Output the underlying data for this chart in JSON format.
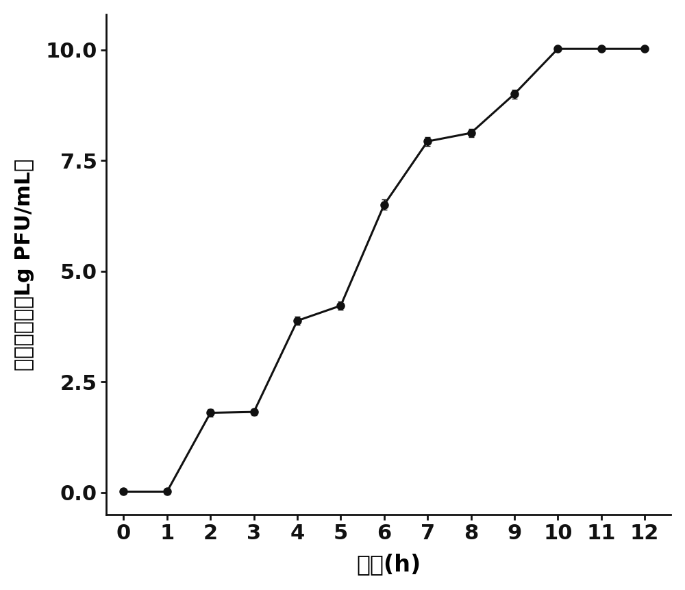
{
  "x": [
    0,
    1,
    2,
    3,
    4,
    5,
    6,
    7,
    8,
    9,
    10,
    11,
    12
  ],
  "y": [
    0.02,
    0.02,
    1.8,
    1.82,
    3.88,
    4.22,
    6.5,
    7.93,
    8.12,
    9.0,
    10.02,
    10.02,
    10.02
  ],
  "yerr": [
    0.04,
    0.04,
    0.09,
    0.07,
    0.1,
    0.09,
    0.12,
    0.1,
    0.1,
    0.1,
    0.05,
    0.04,
    0.05
  ],
  "xlabel": "时间(h)",
  "ylabel": "噌菌体数量（Lg PFU/mL）",
  "yticks": [
    0.0,
    2.5,
    5.0,
    7.5,
    10.0
  ],
  "xticks": [
    0,
    1,
    2,
    3,
    4,
    5,
    6,
    7,
    8,
    9,
    10,
    11,
    12
  ],
  "ylim": [
    -0.5,
    10.8
  ],
  "xlim": [
    -0.4,
    12.6
  ],
  "line_color": "#111111",
  "marker": "o",
  "marker_size": 8,
  "line_width": 2.2,
  "capsize": 3,
  "elinewidth": 1.8,
  "xlabel_fontsize": 24,
  "ylabel_fontsize": 22,
  "tick_fontsize": 22,
  "background_color": "#ffffff"
}
